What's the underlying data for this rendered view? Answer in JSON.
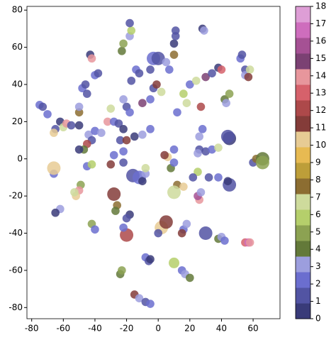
{
  "chart_data": {
    "type": "scatter",
    "x": [
      -75,
      -73,
      -70,
      -65,
      -66,
      -62,
      -60,
      -58,
      -55,
      -50,
      -50,
      -50,
      -48,
      -46,
      -45,
      -43,
      -42,
      -40,
      -38,
      -44,
      -42,
      -45,
      -47,
      -50,
      -40,
      -36,
      -45,
      -42,
      -49,
      -50,
      -52,
      -53,
      -62,
      -65,
      -66,
      -66,
      -30,
      -32,
      -28,
      -25,
      -22,
      -24,
      -28,
      -30,
      -22,
      -22,
      -20,
      -15,
      -10,
      -5,
      -20,
      -18,
      -22,
      -17,
      -14,
      -12,
      -18,
      -17,
      -23,
      -22,
      -18,
      -10,
      -5,
      -3,
      -1,
      2,
      -3,
      0,
      -5,
      5,
      7,
      10,
      11,
      11,
      10,
      18,
      16,
      12,
      20,
      24,
      30,
      34,
      38,
      40,
      42,
      43,
      45,
      52,
      53,
      55,
      55,
      58,
      57,
      28,
      29,
      27,
      28,
      26,
      26,
      25,
      30,
      34,
      38,
      45,
      44,
      60,
      62,
      66,
      66,
      45,
      44,
      38,
      25,
      22,
      32,
      12,
      16,
      10,
      8,
      10,
      6,
      4,
      10,
      2,
      5,
      0,
      16,
      15,
      18,
      30,
      26,
      25,
      27,
      38,
      40,
      42,
      55,
      57,
      58,
      -16,
      -12,
      -10,
      -8,
      -8,
      -28,
      -26,
      -27,
      -20,
      -18,
      -20,
      -22,
      -42,
      -40,
      -8,
      -6,
      -5,
      10,
      15,
      17,
      20,
      -24,
      -23,
      -15,
      -12,
      -8,
      -5
    ],
    "y": [
      29,
      28,
      24,
      16,
      14,
      20,
      17,
      19,
      18,
      18,
      25,
      28,
      38,
      40,
      35,
      56,
      54,
      45,
      46,
      13,
      10,
      8,
      5,
      5,
      15,
      14,
      -4,
      -3,
      -14,
      -17,
      -20,
      -18,
      -27,
      -29,
      -8,
      -5,
      27,
      20,
      20,
      19,
      16,
      10,
      2,
      -3,
      4,
      -2,
      10,
      12,
      13,
      16,
      28,
      25,
      32,
      42,
      48,
      46,
      66,
      69,
      58,
      62,
      73,
      30,
      32,
      38,
      40,
      36,
      54,
      54,
      48,
      52,
      48,
      62,
      66,
      69,
      56,
      30,
      35,
      25,
      40,
      42,
      44,
      46,
      49,
      48,
      32,
      30,
      35,
      54,
      56,
      48,
      45,
      48,
      44,
      70,
      69,
      28,
      16,
      12,
      5,
      3,
      4,
      5,
      6,
      11,
      12,
      -2,
      0,
      0,
      -2,
      -14,
      -12,
      -10,
      -7,
      -10,
      -10,
      -14,
      -15,
      -18,
      -5,
      -2,
      1,
      2,
      5,
      -37,
      -34,
      -40,
      -38,
      -40,
      -35,
      -40,
      -22,
      -20,
      -18,
      -43,
      -42,
      -44,
      -45,
      -45,
      -45,
      -9,
      -10,
      -12,
      -8,
      -5,
      -19,
      -25,
      -28,
      -41,
      -30,
      -32,
      -37,
      -35,
      -38,
      -53,
      -55,
      -54,
      -56,
      -60,
      -62,
      -64,
      -62,
      -60,
      -73,
      -75,
      -77,
      -78
    ],
    "c": [
      2,
      1,
      2,
      1,
      10,
      0,
      7,
      14,
      1,
      0,
      8,
      3,
      2,
      1,
      1,
      0,
      14,
      2,
      1,
      3,
      1,
      12,
      4,
      0,
      2,
      3,
      2,
      6,
      5,
      14,
      10,
      7,
      3,
      0,
      2,
      10,
      7,
      14,
      2,
      1,
      0,
      1,
      2,
      11,
      2,
      1,
      11,
      0,
      3,
      2,
      1,
      2,
      3,
      1,
      2,
      1,
      3,
      6,
      4,
      5,
      1,
      15,
      2,
      1,
      11,
      7,
      2,
      1,
      1,
      3,
      2,
      0,
      1,
      1,
      8,
      7,
      6,
      2,
      2,
      7,
      15,
      1,
      0,
      13,
      4,
      3,
      5,
      2,
      1,
      1,
      3,
      7,
      11,
      0,
      3,
      12,
      2,
      3,
      1,
      3,
      1,
      2,
      7,
      0,
      1,
      1,
      8,
      4,
      5,
      1,
      0,
      2,
      6,
      1,
      1,
      8,
      10,
      7,
      4,
      2,
      10,
      11,
      2,
      10,
      11,
      1,
      2,
      11,
      3,
      1,
      14,
      16,
      3,
      4,
      3,
      2,
      13,
      17,
      14,
      1,
      2,
      0,
      3,
      7,
      11,
      8,
      4,
      12,
      0,
      1,
      2,
      5,
      2,
      2,
      1,
      0,
      6,
      2,
      3,
      4,
      4,
      5,
      11,
      3,
      1,
      2
    ],
    "sizes": [
      60,
      60,
      60,
      60,
      60,
      60,
      60,
      60,
      60,
      60,
      60,
      60,
      60,
      60,
      60,
      60,
      60,
      60,
      60,
      60,
      60,
      60,
      60,
      60,
      60,
      60,
      60,
      60,
      60,
      60,
      60,
      60,
      60,
      60,
      60,
      160,
      60,
      60,
      60,
      60,
      60,
      60,
      60,
      60,
      60,
      60,
      60,
      60,
      60,
      60,
      60,
      60,
      60,
      60,
      60,
      60,
      60,
      60,
      60,
      60,
      60,
      60,
      60,
      60,
      60,
      60,
      160,
      160,
      60,
      60,
      60,
      60,
      60,
      60,
      60,
      60,
      60,
      60,
      60,
      60,
      60,
      60,
      60,
      60,
      60,
      60,
      60,
      60,
      60,
      60,
      60,
      60,
      60,
      60,
      60,
      60,
      60,
      60,
      60,
      60,
      60,
      60,
      60,
      160,
      160,
      60,
      60,
      160,
      160,
      160,
      60,
      60,
      60,
      60,
      60,
      60,
      60,
      160,
      60,
      60,
      60,
      60,
      60,
      160,
      160,
      60,
      60,
      60,
      60,
      160,
      60,
      60,
      60,
      60,
      60,
      60,
      60,
      60,
      60,
      160,
      160,
      60,
      60,
      60,
      160,
      60,
      60,
      160,
      60,
      60,
      60,
      60,
      60,
      60,
      60,
      60,
      100,
      60,
      60,
      60,
      60,
      60,
      60,
      60,
      60,
      60
    ],
    "xlim": [
      -83,
      77
    ],
    "ylim": [
      -86,
      82
    ],
    "xticks": [
      -80,
      -60,
      -40,
      -20,
      0,
      20,
      40,
      60
    ],
    "yticks": [
      -80,
      -60,
      -40,
      -20,
      0,
      20,
      40,
      60,
      80
    ],
    "colorbar": {
      "lim": [
        0,
        18
      ],
      "ticks": [
        0,
        1,
        2,
        3,
        4,
        5,
        6,
        7,
        8,
        9,
        10,
        11,
        12,
        13,
        14,
        15,
        16,
        17,
        18
      ],
      "colors": [
        "#393b79",
        "#5254a3",
        "#6b6ecf",
        "#9c9ede",
        "#637939",
        "#8ca252",
        "#b5cf6b",
        "#cedb9c",
        "#8c6d31",
        "#bd9e39",
        "#e7ba52",
        "#e7cb94",
        "#843c39",
        "#ad494a",
        "#d6616b",
        "#e7969c",
        "#7b4173",
        "#a55194",
        "#ce6dbd",
        "#de9ed6"
      ]
    },
    "alpha": 0.85
  }
}
